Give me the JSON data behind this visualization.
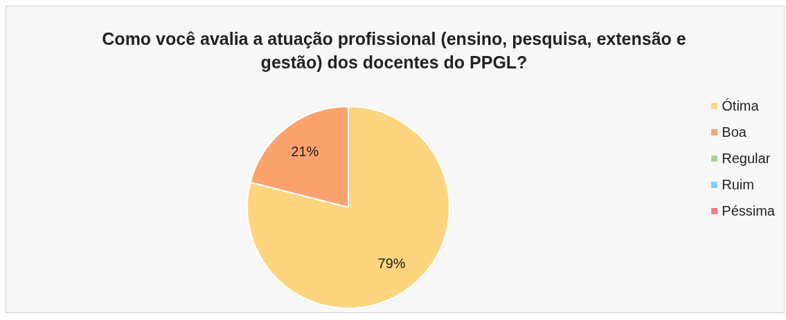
{
  "chart_data": {
    "type": "pie",
    "title": "Como você avalia a atuação profissional (ensino, pesquisa, extensão e gestão) dos docentes do PPGL?",
    "categories": [
      "Ótima",
      "Boa",
      "Regular",
      "Ruim",
      "Péssima"
    ],
    "values": [
      79,
      21,
      0,
      0,
      0
    ],
    "colors": [
      "#fdd57e",
      "#fba36f",
      "#a9d18e",
      "#7fd3f3",
      "#f4807a"
    ],
    "value_labels": [
      "79%",
      "21%",
      null,
      null,
      null
    ],
    "legend": "right"
  }
}
